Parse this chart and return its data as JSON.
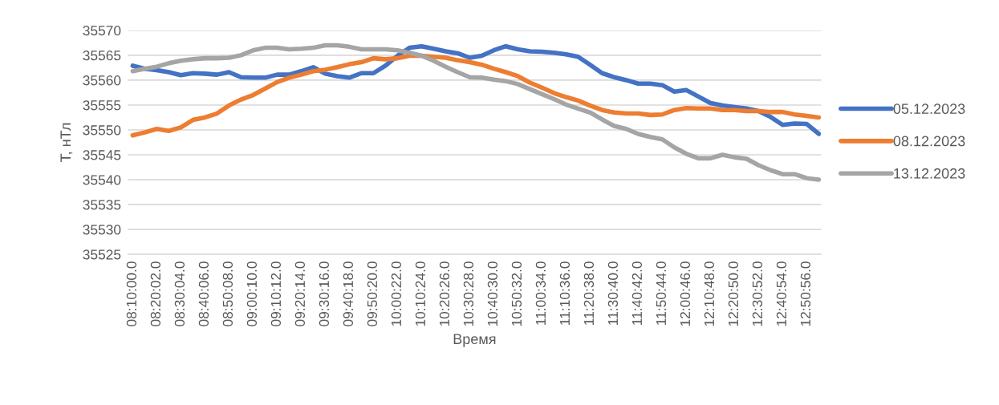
{
  "chart_data": {
    "type": "line",
    "xlabel": "Время",
    "ylabel": "T, нТл",
    "categories": [
      "08:10:00.0",
      null,
      "08:20:02.0",
      null,
      "08:30:04.0",
      null,
      "08:40:06.0",
      null,
      "08:50:08.0",
      null,
      "09:00:10.0",
      null,
      "09:10:12.0",
      null,
      "09:20:14.0",
      null,
      "09:30:16.0",
      null,
      "09:40:18.0",
      null,
      "09:50:20.0",
      null,
      "10:00:22.0",
      null,
      "10:10:24.0",
      null,
      "10:20:26.0",
      null,
      "10:30:28.0",
      null,
      "10:40:30.0",
      null,
      "10:50:32.0",
      null,
      "11:00:34.0",
      null,
      "11:10:36.0",
      null,
      "11:20:38.0",
      null,
      "11:30:40.0",
      null,
      "11:40:42.0",
      null,
      "11:50:44.0",
      null,
      "12:00:46.0",
      null,
      "12:10:48.0",
      null,
      "12:20:50.0",
      null,
      "12:30:52.0",
      null,
      "12:40:54.0",
      null,
      "12:50:56.0",
      null
    ],
    "series": [
      {
        "name": "05.12.2023",
        "color": "#4472c4",
        "values": [
          35562.9,
          35562.3,
          35562,
          35561.6,
          35561,
          35561.4,
          35561.3,
          35561.1,
          35561.6,
          35560.6,
          35560.5,
          35560.5,
          35561.1,
          35561.1,
          35561.8,
          35562.6,
          35561.3,
          35560.8,
          35560.5,
          35561.4,
          35561.4,
          35562.9,
          35564.9,
          35566.5,
          35566.8,
          35566.3,
          35565.8,
          35565.4,
          35564.5,
          35564.9,
          35566,
          35566.8,
          35566.2,
          35565.8,
          35565.7,
          35565.5,
          35565.2,
          35564.7,
          35563.1,
          35561.4,
          35560.6,
          35560,
          35559.3,
          35559.3,
          35559,
          35557.7,
          35558,
          35556.7,
          35555.4,
          35554.9,
          35554.6,
          35554.3,
          35553.8,
          35552.6,
          35551,
          35551.3,
          35551.2,
          35549.2
        ]
      },
      {
        "name": "08.12.2023",
        "color": "#ed7d31",
        "values": [
          35548.9,
          35549.5,
          35550.2,
          35549.8,
          35550.5,
          35552,
          35552.5,
          35553.3,
          35554.9,
          35556.1,
          35557,
          35558.3,
          35559.6,
          35560.5,
          35561.1,
          35561.8,
          35562.1,
          35562.6,
          35563.2,
          35563.6,
          35564.4,
          35564.2,
          35564.4,
          35564.9,
          35564.9,
          35564.7,
          35564.5,
          35564,
          35563.6,
          35563.1,
          35562.3,
          35561.6,
          35560.8,
          35559.5,
          35558.5,
          35557.4,
          35556.6,
          35555.9,
          35554.9,
          35554,
          35553.5,
          35553.3,
          35553.3,
          35553,
          35553.1,
          35554,
          35554.4,
          35554.3,
          35554.3,
          35554,
          35554,
          35553.8,
          35553.8,
          35553.6,
          35553.6,
          35553.1,
          35552.8,
          35552.5
        ]
      },
      {
        "name": "13.12.2023",
        "color": "#a5a5a5",
        "values": [
          35561.8,
          35562.3,
          35562.7,
          35563.4,
          35563.9,
          35564.2,
          35564.4,
          35564.4,
          35564.5,
          35565,
          35566,
          35566.5,
          35566.5,
          35566.2,
          35566.3,
          35566.5,
          35567,
          35567,
          35566.7,
          35566.2,
          35566.2,
          35566.2,
          35566,
          35565.5,
          35564.9,
          35563.9,
          35562.7,
          35561.6,
          35560.6,
          35560.5,
          35560.1,
          35559.8,
          35559.2,
          35558.2,
          35557.2,
          35556.2,
          35555.1,
          35554.3,
          35553.5,
          35552.1,
          35550.8,
          35550.2,
          35549.2,
          35548.6,
          35548.1,
          35546.5,
          35545.2,
          35544.3,
          35544.3,
          35545,
          35544.5,
          35544.2,
          35542.9,
          35541.9,
          35541.1,
          35541.1,
          35540.3,
          35540
        ]
      }
    ],
    "ylim": [
      35525,
      35570
    ],
    "yticks": [
      35525,
      35530,
      35535,
      35540,
      35545,
      35550,
      35555,
      35560,
      35565,
      35570
    ],
    "grid": "y",
    "legend": "right",
    "line_style": "solid",
    "marker": "none"
  }
}
